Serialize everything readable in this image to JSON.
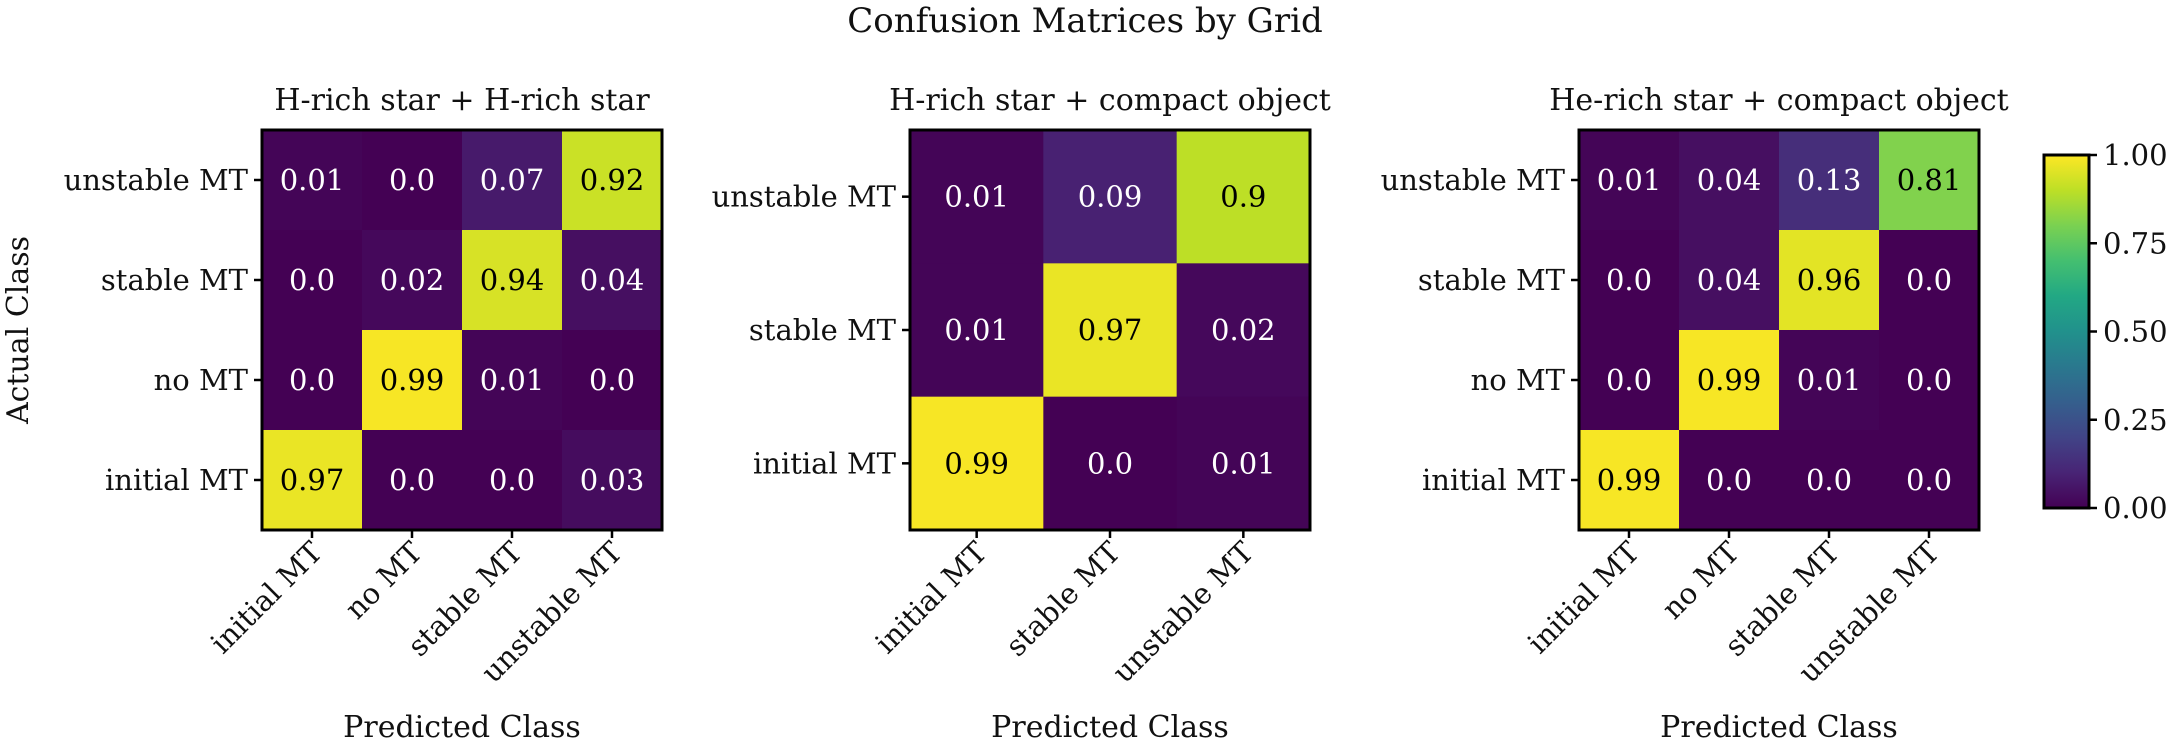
{
  "title": "Confusion Matrices by Grid",
  "colors": {
    "viridis_stops": [
      "#440154",
      "#482475",
      "#414487",
      "#355f8d",
      "#2a788e",
      "#21918c",
      "#22a884",
      "#44bf70",
      "#7ad151",
      "#bddf26",
      "#fde725"
    ],
    "text_dark": "#000000",
    "text_light": "#ffffff"
  },
  "colorbar": {
    "min": 0.0,
    "max": 1.0,
    "ticks": [
      "0.00",
      "0.25",
      "0.50",
      "0.75",
      "1.00"
    ]
  },
  "ylabel": "Actual Class",
  "chart_data": [
    {
      "type": "heatmap",
      "title": "H-rich star + H-rich star",
      "xlabel": "Predicted Class",
      "ylabel": "Actual Class",
      "x_categories": [
        "initial MT",
        "no MT",
        "stable MT",
        "unstable MT"
      ],
      "y_categories": [
        "unstable MT",
        "stable MT",
        "no MT",
        "initial MT"
      ],
      "values": [
        [
          0.01,
          0.0,
          0.07,
          0.92
        ],
        [
          0.0,
          0.02,
          0.94,
          0.04
        ],
        [
          0.0,
          0.99,
          0.01,
          0.0
        ],
        [
          0.97,
          0.0,
          0.0,
          0.03
        ]
      ],
      "labels": [
        [
          "0.01",
          "0.0",
          "0.07",
          "0.92"
        ],
        [
          "0.0",
          "0.02",
          "0.94",
          "0.04"
        ],
        [
          "0.0",
          "0.99",
          "0.01",
          "0.0"
        ],
        [
          "0.97",
          "0.0",
          "0.0",
          "0.03"
        ]
      ]
    },
    {
      "type": "heatmap",
      "title": "H-rich star + compact object",
      "xlabel": "Predicted Class",
      "x_categories": [
        "initial MT",
        "stable MT",
        "unstable MT"
      ],
      "y_categories": [
        "unstable MT",
        "stable MT",
        "initial MT"
      ],
      "values": [
        [
          0.01,
          0.09,
          0.9
        ],
        [
          0.01,
          0.97,
          0.02
        ],
        [
          0.99,
          0.0,
          0.01
        ]
      ],
      "labels": [
        [
          "0.01",
          "0.09",
          "0.9"
        ],
        [
          "0.01",
          "0.97",
          "0.02"
        ],
        [
          "0.99",
          "0.0",
          "0.01"
        ]
      ]
    },
    {
      "type": "heatmap",
      "title": "He-rich star + compact object",
      "xlabel": "Predicted Class",
      "x_categories": [
        "initial MT",
        "no MT",
        "stable MT",
        "unstable MT"
      ],
      "y_categories": [
        "unstable MT",
        "stable MT",
        "no MT",
        "initial MT"
      ],
      "values": [
        [
          0.01,
          0.04,
          0.13,
          0.81
        ],
        [
          0.0,
          0.04,
          0.96,
          0.0
        ],
        [
          0.0,
          0.99,
          0.01,
          0.0
        ],
        [
          0.99,
          0.0,
          0.0,
          0.0
        ]
      ],
      "labels": [
        [
          "0.01",
          "0.04",
          "0.13",
          "0.81"
        ],
        [
          "0.0",
          "0.04",
          "0.96",
          "0.0"
        ],
        [
          "0.0",
          "0.99",
          "0.01",
          "0.0"
        ],
        [
          "0.99",
          "0.0",
          "0.0",
          "0.0"
        ]
      ]
    }
  ]
}
